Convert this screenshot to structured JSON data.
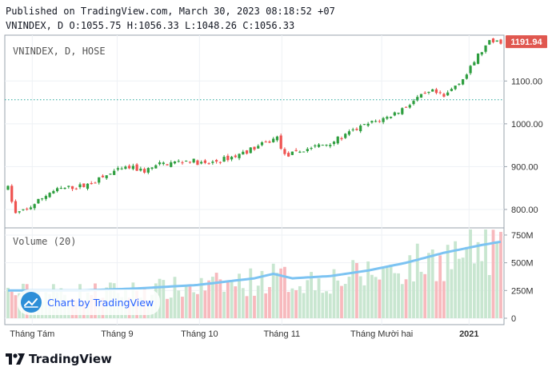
{
  "header": {
    "published": "Published on TradingView.com, March 30, 2023 08:18:52 +07",
    "ohlc": "VNINDEX, D O:1055.75 H:1056.33 L:1048.26 C:1056.33"
  },
  "colors": {
    "up": "#26a69a",
    "up_candle": "#2e9e3f",
    "down": "#ef5350",
    "vol_up": "#c8e6d0",
    "vol_down": "#f7b9bd",
    "ma": "#7cc3f2",
    "grid": "#eef1f5",
    "axis_text": "#333333",
    "dotted_line": "#26a69a",
    "last_price_bg": "#e0574f"
  },
  "chart_data": {
    "type": "candlestick",
    "symbol_label": "VNINDEX, D, HOSE",
    "price_axis": {
      "range": [
        757,
        1207
      ],
      "ticks": [
        "800.00",
        "900.00",
        "1000.00",
        "1100.00"
      ],
      "tick_values": [
        800,
        900,
        1000,
        1100
      ]
    },
    "last_price_label": "1191.94",
    "last_price": 1191.94,
    "reference_line": 1056.33,
    "time_axis": {
      "labels": [
        "Tháng Tám",
        "Tháng 9",
        "Tháng 10",
        "Tháng 11",
        "Tháng Mười hai",
        "2021"
      ]
    },
    "price_path": [
      [
        0,
        850
      ],
      [
        2,
        790
      ],
      [
        5,
        800
      ],
      [
        8,
        820
      ],
      [
        11,
        840
      ],
      [
        14,
        848
      ],
      [
        17,
        852
      ],
      [
        20,
        855
      ],
      [
        24,
        870
      ],
      [
        28,
        888
      ],
      [
        32,
        898
      ],
      [
        36,
        890
      ],
      [
        40,
        905
      ],
      [
        44,
        910
      ],
      [
        48,
        915
      ],
      [
        52,
        905
      ],
      [
        56,
        915
      ],
      [
        60,
        925
      ],
      [
        64,
        940
      ],
      [
        68,
        955
      ],
      [
        71,
        968
      ],
      [
        73,
        925
      ],
      [
        76,
        932
      ],
      [
        80,
        945
      ],
      [
        84,
        953
      ],
      [
        88,
        968
      ],
      [
        92,
        988
      ],
      [
        96,
        1003
      ],
      [
        100,
        1015
      ],
      [
        104,
        1035
      ],
      [
        108,
        1060
      ],
      [
        112,
        1075
      ],
      [
        115,
        1062
      ],
      [
        118,
        1090
      ],
      [
        121,
        1115
      ],
      [
        124,
        1160
      ],
      [
        127,
        1190
      ],
      [
        130,
        1192
      ]
    ],
    "volume": {
      "title": "Volume (20)",
      "axis": {
        "range": [
          0,
          800
        ],
        "ticks": [
          "0",
          "250M",
          "500M",
          "750M"
        ],
        "tick_values": [
          0,
          250,
          500,
          750
        ]
      },
      "ma_path": [
        [
          0,
          250
        ],
        [
          20,
          250
        ],
        [
          35,
          270
        ],
        [
          50,
          300
        ],
        [
          65,
          360
        ],
        [
          70,
          400
        ],
        [
          75,
          360
        ],
        [
          85,
          380
        ],
        [
          95,
          430
        ],
        [
          105,
          500
        ],
        [
          115,
          590
        ],
        [
          125,
          660
        ],
        [
          130,
          690
        ]
      ]
    }
  },
  "watermark": {
    "text": "Chart by TradingView"
  },
  "brand": {
    "text": "TradingView"
  }
}
